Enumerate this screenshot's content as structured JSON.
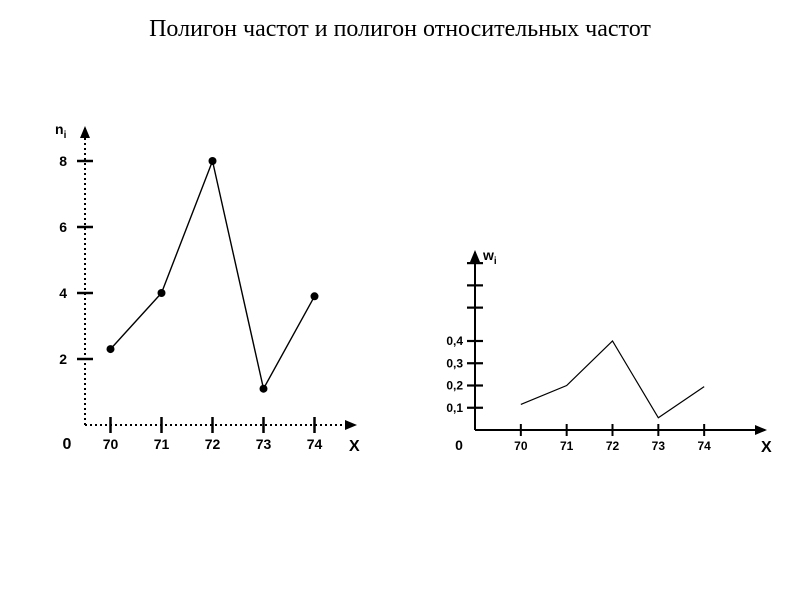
{
  "title": "Полигон частот и полигон относительных частот",
  "title_fontsize": 24,
  "background_color": "#ffffff",
  "text_color": "#000000",
  "left_chart": {
    "type": "line",
    "ylabel": "n_i",
    "xlabel": "X",
    "x_values": [
      70,
      71,
      72,
      73,
      74
    ],
    "y_values": [
      2.3,
      4.0,
      8.0,
      1.1,
      3.9
    ],
    "ylim": [
      0,
      9
    ],
    "yticks": [
      2,
      4,
      6,
      8
    ],
    "xlim": [
      69.5,
      74.5
    ],
    "xticks": [
      70,
      71,
      72,
      73,
      74
    ],
    "line_color": "#000000",
    "line_width": 1.4,
    "marker": "circle",
    "marker_size": 8,
    "marker_color": "#000000",
    "axis_style": "dashed",
    "axis_color": "#000000",
    "tick_mark_len": 8,
    "origin_label": "0",
    "label_fontsize": 14,
    "tick_fontsize": 14
  },
  "right_chart": {
    "type": "line",
    "ylabel": "w_i",
    "xlabel": "X",
    "x_values": [
      70,
      71,
      72,
      73,
      74
    ],
    "y_values": [
      0.115,
      0.2,
      0.4,
      0.055,
      0.195
    ],
    "ylim": [
      0,
      0.8
    ],
    "yticks": [
      0.1,
      0.2,
      0.3,
      0.4
    ],
    "ytick_labels": [
      "0,1",
      "0,2",
      "0,3",
      "0,4"
    ],
    "extra_yticks": [
      0.55,
      0.65,
      0.75
    ],
    "xlim": [
      69,
      75
    ],
    "xticks": [
      70,
      71,
      72,
      73,
      74
    ],
    "line_color": "#000000",
    "line_width": 1.2,
    "axis_color": "#000000",
    "tick_mark_len": 8,
    "origin_label": "0",
    "label_fontsize": 14,
    "tick_fontsize": 12
  }
}
